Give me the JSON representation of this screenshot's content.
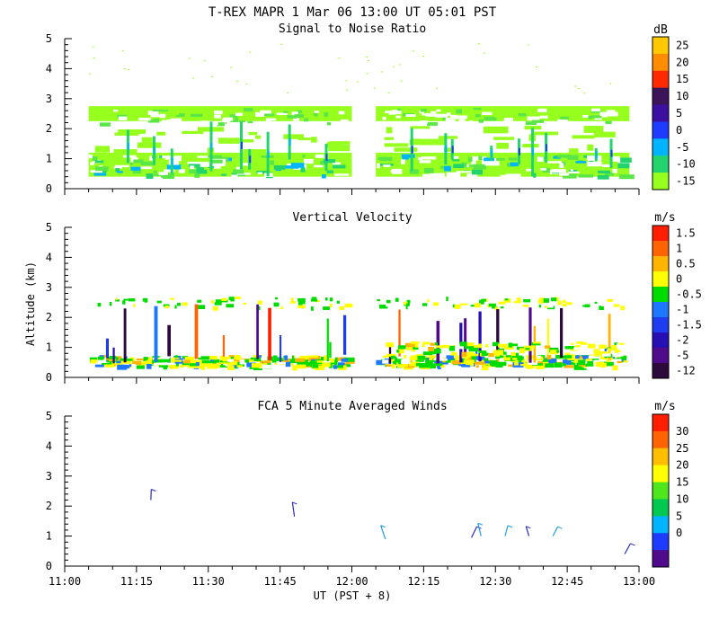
{
  "title": "T-REX   MAPR   1 Mar 06   13:00 UT   05:01   PST",
  "xlabel": "UT  (PST + 8)",
  "ylabel": "Altitude (km)",
  "chart_data": [
    {
      "type": "heatmap",
      "title": "Signal to Noise Ratio",
      "unit": "dB",
      "ylim": [
        0,
        5
      ],
      "yticks": [
        "0",
        "1",
        "2",
        "3",
        "4",
        "5"
      ],
      "colorbar": {
        "labels": [
          "25",
          "20",
          "15",
          "10",
          "5",
          "0",
          "-5",
          "-10",
          "-15"
        ],
        "colors": [
          "#ffc800",
          "#ff8c00",
          "#ff2a00",
          "#3c145a",
          "#3b0fa0",
          "#1e3cff",
          "#00b4ff",
          "#23d46e",
          "#96ff1e"
        ]
      },
      "data_time_ranges": [
        [
          "11:05",
          "12:00"
        ],
        [
          "12:05",
          "12:58"
        ]
      ],
      "layers": [
        {
          "name": "upper band",
          "alt_range_km": [
            2.2,
            2.75
          ],
          "color": "#96ff1e"
        },
        {
          "name": "mid layer",
          "alt_range_km": [
            1.3,
            2.1
          ],
          "color": "#96ff1e"
        },
        {
          "name": "lower band",
          "alt_range_km": [
            0.4,
            1.2
          ],
          "color": "#96ff1e"
        }
      ]
    },
    {
      "type": "heatmap",
      "title": "Vertical Velocity",
      "unit": "m/s",
      "ylim": [
        0,
        5
      ],
      "yticks": [
        "0",
        "1",
        "2",
        "3",
        "4",
        "5"
      ],
      "colorbar": {
        "labels": [
          "1.5",
          "1",
          "0.5",
          "0",
          "-0.5",
          "-1",
          "-1.5",
          "-2",
          "-5",
          "-12"
        ],
        "colors": [
          "#ff1e00",
          "#ff6400",
          "#ffb400",
          "#ffff00",
          "#00dc00",
          "#1e78ff",
          "#1e3cf0",
          "#280fb4",
          "#500a8c",
          "#2d0a3c"
        ]
      },
      "data_time_ranges": [
        [
          "11:05",
          "12:00"
        ],
        [
          "12:05",
          "12:58"
        ]
      ]
    },
    {
      "type": "scatter",
      "title": "FCA 5 Minute Averaged Winds",
      "unit": "m/s",
      "ylim": [
        0,
        5
      ],
      "yticks": [
        "0",
        "1",
        "2",
        "3",
        "4",
        "5"
      ],
      "colorbar": {
        "labels": [
          "30",
          "25",
          "20",
          "15",
          "10",
          "5",
          "0"
        ],
        "colors": [
          "#ff1e00",
          "#ff6400",
          "#ffbe00",
          "#ffff00",
          "#50e61e",
          "#00c850",
          "#00b4ff",
          "#1e3cff",
          "#500a8c"
        ]
      },
      "barbs": [
        {
          "time": "11:18",
          "alt_km": 2.2,
          "color": "#2828c8"
        },
        {
          "time": "11:48",
          "alt_km": 1.65,
          "color": "#2828c8"
        },
        {
          "time": "12:07",
          "alt_km": 0.9,
          "color": "#1e9be6"
        },
        {
          "time": "12:25",
          "alt_km": 0.95,
          "color": "#2828c8"
        },
        {
          "time": "12:27",
          "alt_km": 1.0,
          "color": "#1e9be6"
        },
        {
          "time": "12:32",
          "alt_km": 1.0,
          "color": "#1e9be6"
        },
        {
          "time": "12:37",
          "alt_km": 1.0,
          "color": "#2828c8"
        },
        {
          "time": "12:42",
          "alt_km": 1.0,
          "color": "#1e9be6"
        },
        {
          "time": "12:57",
          "alt_km": 0.4,
          "color": "#2828c8"
        }
      ]
    }
  ],
  "xaxis": {
    "range": [
      "11:00",
      "13:00"
    ],
    "ticks": [
      "11:00",
      "11:15",
      "11:30",
      "11:45",
      "12:00",
      "12:15",
      "12:30",
      "12:45",
      "13:00"
    ]
  }
}
